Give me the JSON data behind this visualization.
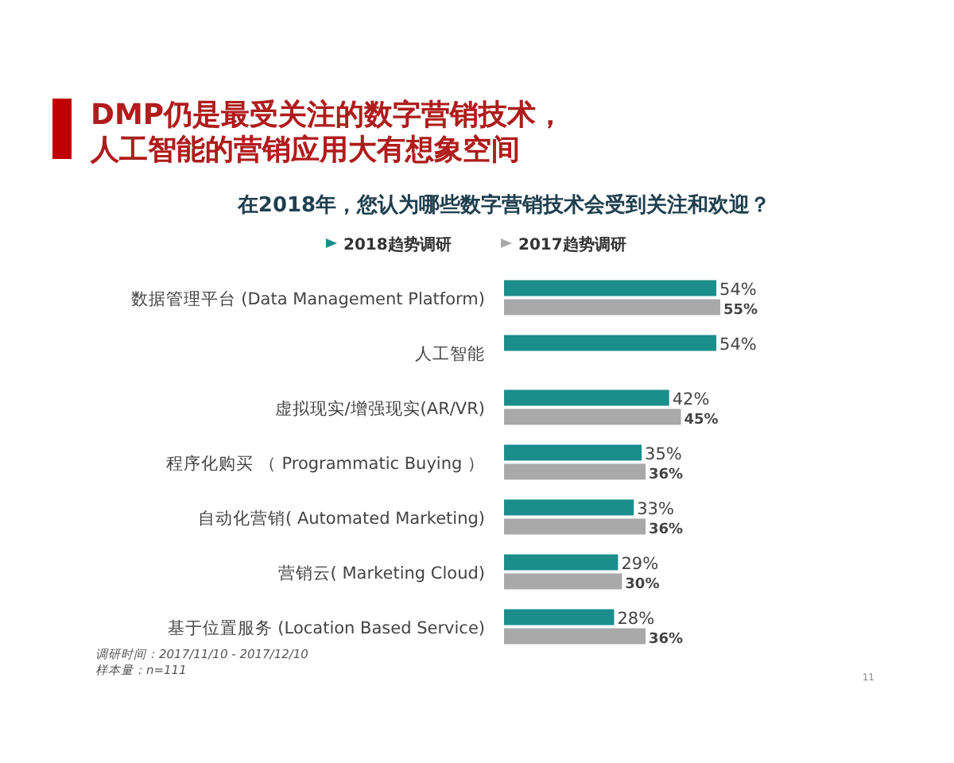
{
  "chart_data": {
    "type": "bar",
    "orientation": "horizontal",
    "title": "DMP仍是最受关注的数字营销技术，人工智能的营销应用大有想象空间",
    "subtitle": "在2018年，您认为哪些数字营销技术会受到关注和欢迎？",
    "categories": [
      "数据管理平台 (Data Management Platform)",
      "人工智能",
      "虚拟现实/增强现实(AR/VR)",
      "程序化购买 （ Programmatic Buying ）",
      "自动化营销( Automated Marketing)",
      "营销云( Marketing Cloud)",
      "基于位置服务 (Location Based Service)"
    ],
    "series": [
      {
        "name": "2018趋势调研",
        "color": "#1b8e8c",
        "values": [
          54,
          54,
          42,
          35,
          33,
          29,
          28
        ],
        "value_labels": [
          "54%",
          "54%",
          "42%",
          "35%",
          "33%",
          "29%",
          "28%"
        ]
      },
      {
        "name": "2017趋势调研",
        "color": "#a9a9a9",
        "values": [
          55,
          null,
          45,
          36,
          36,
          30,
          36
        ],
        "value_labels": [
          "55%",
          null,
          "45%",
          "36%",
          "36%",
          "30%",
          "36%"
        ]
      }
    ],
    "legend": "top",
    "annotations": [
      "调研时间：2017/11/10 - 2017/12/10",
      "样本量：n=111",
      "11"
    ]
  }
}
